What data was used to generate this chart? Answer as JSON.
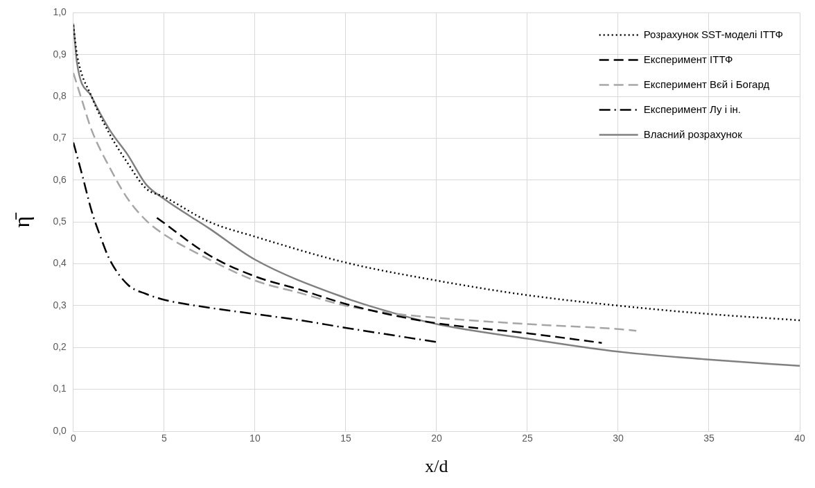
{
  "chart_data": {
    "type": "line",
    "xlabel": "x/d",
    "ylabel": "η̄",
    "xlim": [
      0,
      40
    ],
    "xticks": [
      0,
      5,
      10,
      15,
      20,
      25,
      30,
      35,
      40
    ],
    "ylim": [
      0,
      1
    ],
    "yticks": [
      {
        "value": 0,
        "label": "0,0"
      },
      {
        "value": 0.1,
        "label": "0,1"
      },
      {
        "value": 0.2,
        "label": "0,2"
      },
      {
        "value": 0.3,
        "label": "0,3"
      },
      {
        "value": 0.4,
        "label": "0,4"
      },
      {
        "value": 0.5,
        "label": "0,5"
      },
      {
        "value": 0.6,
        "label": "0,6"
      },
      {
        "value": 0.7,
        "label": "0,7"
      },
      {
        "value": 0.8,
        "label": "0,8"
      },
      {
        "value": 0.9,
        "label": "0,9"
      },
      {
        "value": 1,
        "label": "1,0"
      }
    ],
    "grid": true,
    "legend": "top right",
    "marker": "none",
    "series": [
      {
        "name": "Розрахунок SST-моделі ІТТФ",
        "color": "#000000",
        "line_style": "dotted",
        "x": [
          0,
          0.2,
          1,
          2,
          3,
          4,
          5,
          7.5,
          10,
          15,
          20,
          25,
          30,
          35,
          40
        ],
        "values": [
          0.97,
          0.9,
          0.8,
          0.71,
          0.64,
          0.58,
          0.56,
          0.5,
          0.465,
          0.403,
          0.36,
          0.325,
          0.3,
          0.28,
          0.265
        ]
      },
      {
        "name": "Експеримент ІТТФ",
        "color": "#000000",
        "line_style": "dashed",
        "x": [
          4.6,
          7.5,
          10,
          12.5,
          15,
          17.5,
          20,
          25,
          29.1
        ],
        "values": [
          0.51,
          0.42,
          0.37,
          0.338,
          0.304,
          0.278,
          0.258,
          0.234,
          0.211
        ]
      },
      {
        "name": "Експеримент Вєй і Богард",
        "color": "#a6a6a6",
        "line_style": "dashed",
        "x": [
          0,
          0.5,
          1,
          2,
          3,
          4,
          5,
          7.5,
          10,
          12.5,
          15,
          17.5,
          20,
          25,
          30,
          31
        ],
        "values": [
          0.856,
          0.787,
          0.72,
          0.63,
          0.555,
          0.504,
          0.47,
          0.41,
          0.36,
          0.33,
          0.3,
          0.282,
          0.271,
          0.256,
          0.244,
          0.24
        ]
      },
      {
        "name": "Експеримент Лу і ін.",
        "color": "#000000",
        "line_style": "dashdot",
        "x": [
          0,
          0.5,
          1,
          1.5,
          2,
          3,
          4,
          5,
          7.5,
          10,
          12.5,
          15,
          20
        ],
        "values": [
          0.69,
          0.61,
          0.527,
          0.464,
          0.41,
          0.35,
          0.328,
          0.314,
          0.295,
          0.28,
          0.265,
          0.247,
          0.213
        ]
      },
      {
        "name": "Власний розрахунок",
        "color": "#808080",
        "line_style": "solid",
        "x": [
          0,
          0.2,
          1,
          2,
          3,
          4,
          5,
          7.5,
          10,
          15,
          17.5,
          20,
          25,
          30,
          35,
          40
        ],
        "values": [
          0.974,
          0.88,
          0.8,
          0.72,
          0.66,
          0.59,
          0.555,
          0.484,
          0.41,
          0.318,
          0.284,
          0.256,
          0.221,
          0.19,
          0.171,
          0.156
        ]
      }
    ]
  }
}
